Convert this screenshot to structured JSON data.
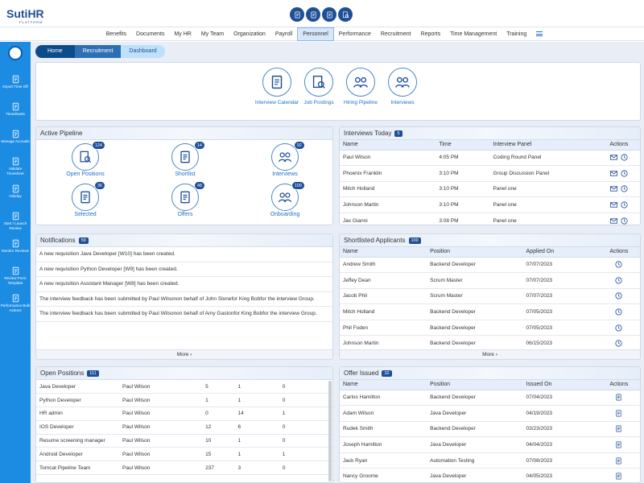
{
  "header": {
    "logo": "SutiHR",
    "logo_tagline": "PLATFORM"
  },
  "nav": {
    "items": [
      "Benefits",
      "Documents",
      "My HR",
      "My Team",
      "Organization",
      "Payroll",
      "Personnel",
      "Performance",
      "Recruitment",
      "Reports",
      "Time Management",
      "Training"
    ],
    "active": 6
  },
  "sidebar": {
    "items": [
      "Import Time Off",
      "Timesheets",
      "Manage Accruals",
      "Validate Timesheet",
      "Holiday",
      "Start / Launch Review",
      "Monitor Reviews",
      "Review Form Template",
      "Performance Bulk Actions"
    ]
  },
  "breadcrumb": [
    "Home",
    "Recruitment",
    "Dashboard"
  ],
  "quick_links": [
    "Interview Calendar",
    "Job Postings",
    "Hiring Pipeline",
    "Interviews"
  ],
  "active_pipeline": {
    "title": "Active Pipeline",
    "items": [
      {
        "label": "Open Positions",
        "count": 124
      },
      {
        "label": "Shortlist",
        "count": 14
      },
      {
        "label": "Interviews",
        "count": 92
      },
      {
        "label": "Selected",
        "count": 36
      },
      {
        "label": "Offers",
        "count": 48
      },
      {
        "label": "Onboarding",
        "count": 109
      }
    ]
  },
  "interviews_today": {
    "title": "Interviews Today",
    "count": 5,
    "columns": [
      "Name",
      "Time",
      "Interview Panel",
      "Actions"
    ],
    "rows": [
      [
        "Paul Wilson",
        "4:05 PM",
        "Coding Round Panel"
      ],
      [
        "Phoenix Franklin",
        "3:10 PM",
        "Group Discussion Panel"
      ],
      [
        "Mitch Holland",
        "3:10 PM",
        "Panel one"
      ],
      [
        "Johnson Martin",
        "3:10 PM",
        "Panel one"
      ],
      [
        "Jax Gianni",
        "3:08 PM",
        "Panel one"
      ]
    ]
  },
  "notifications": {
    "title": "Notifications",
    "count": 59,
    "items": [
      "A new requisition Java Developer [W10] has been created.",
      "A new requisition Python Developer [W9] has been created.",
      "A new requisition Assistant Manager [W8] has been created.",
      "The interview feedback has been submitted by Paul Wilsonon behalf of John Slonefor King Bobfor the interview Group.",
      "The interview feedback has been submitted by Paul Wilsonon behalf of Amy Gastonfor King Bobfor the interview Group."
    ],
    "more": "More ›"
  },
  "shortlisted_applicants": {
    "title": "Shortlisted Applicants",
    "count": 100,
    "columns": [
      "Name",
      "Position",
      "Applied On",
      "Actions"
    ],
    "rows": [
      [
        "Andrew Smith",
        "Backend Developer",
        "07/07/2023"
      ],
      [
        "Jeffey Dean",
        "Scrum Master",
        "07/07/2023"
      ],
      [
        "Jacob Phil",
        "Scrum Master",
        "07/07/2023"
      ],
      [
        "Mitch Holland",
        "Backend Developer",
        "07/05/2023"
      ],
      [
        "Phil Foden",
        "Backend Developer",
        "07/05/2023"
      ],
      [
        "Johnson Martin",
        "Backend Developer",
        "06/15/2023"
      ]
    ],
    "more": "More ›"
  },
  "open_positions": {
    "title": "Open Positions",
    "count": 111,
    "rows": [
      [
        "Java Developer",
        "Paul Wilson",
        5,
        1,
        0
      ],
      [
        "Python Developer",
        "Paul Wilson",
        1,
        1,
        0
      ],
      [
        "HR admin",
        "Paul Wilson",
        0,
        14,
        1
      ],
      [
        "IOS Developer",
        "Paul Wilson",
        12,
        6,
        0
      ],
      [
        "Resume screening manager",
        "Paul Wilson",
        10,
        1,
        0
      ],
      [
        "Android Developer",
        "Paul Wilson",
        15,
        1,
        1
      ],
      [
        "Tomcat Pipeline Team",
        "Paul Wilson",
        237,
        3,
        0
      ]
    ]
  },
  "offer_issued": {
    "title": "Offer Issued",
    "count": 32,
    "columns": [
      "Name",
      "Position",
      "Issued On",
      "Actions"
    ],
    "rows": [
      [
        "Carlos Hamilton",
        "Backend Developer",
        "07/04/2023"
      ],
      [
        "Adam Wilson",
        "Java Developer",
        "04/19/2023"
      ],
      [
        "Rudek Smith",
        "Backend Developer",
        "03/23/2023"
      ],
      [
        "Joseph Hamilton",
        "Java Developer",
        "04/04/2023"
      ],
      [
        "Jack Ryan",
        "Automation Testing",
        "07/08/2023"
      ],
      [
        "Nancy Groome",
        "Java Developer",
        "04/05/2023"
      ]
    ]
  }
}
